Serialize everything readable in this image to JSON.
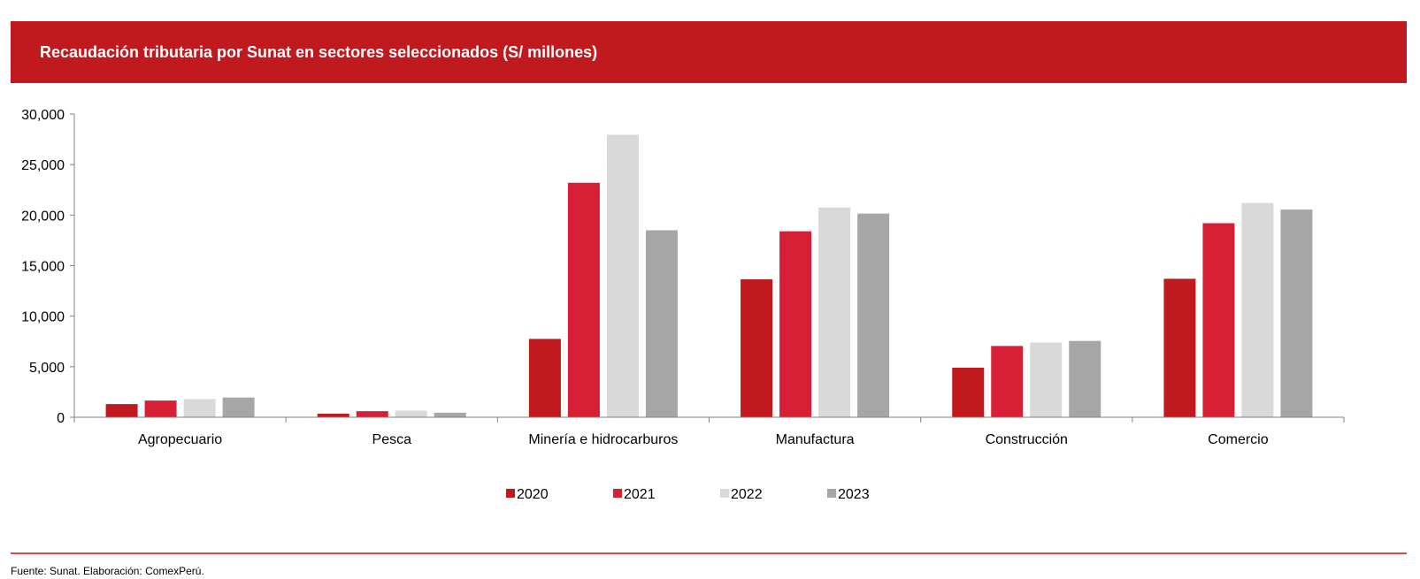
{
  "chart_data": {
    "type": "bar",
    "title": "Recaudación tributaria por Sunat en sectores seleccionados (S/ millones)",
    "categories": [
      "Agropecuario",
      "Pesca",
      "Minería e hidrocarburos",
      "Manufactura",
      "Construcción",
      "Comercio"
    ],
    "series": [
      {
        "name": "2020",
        "color": "#c0191e",
        "values": [
          1300,
          350,
          7750,
          13650,
          4900,
          13700
        ]
      },
      {
        "name": "2021",
        "color": "#d71f35",
        "values": [
          1650,
          600,
          23200,
          18400,
          7050,
          19200
        ]
      },
      {
        "name": "2022",
        "color": "#d9d9d9",
        "values": [
          1800,
          650,
          27950,
          20750,
          7400,
          21200
        ]
      },
      {
        "name": "2023",
        "color": "#a6a6a6",
        "values": [
          1950,
          450,
          18500,
          20150,
          7550,
          20550
        ]
      }
    ],
    "yticks": [
      "0",
      "5,000",
      "10,000",
      "15,000",
      "20,000",
      "25,000",
      "30,000"
    ],
    "ylim": [
      0,
      30000
    ],
    "xlabel": "",
    "ylabel": "",
    "legend_position": "bottom-center"
  },
  "footer": {
    "source": "Fuente: Sunat. Elaboración: ComexPerú."
  }
}
